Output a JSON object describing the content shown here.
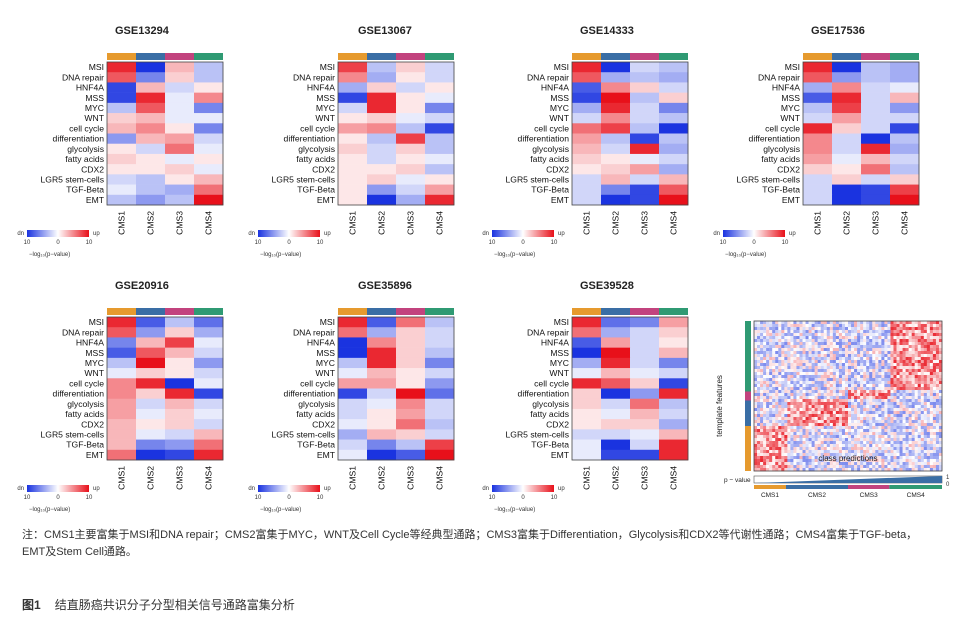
{
  "figure": {
    "row_labels": [
      "MSI",
      "DNA repair",
      "HNF4A",
      "MSS",
      "MYC",
      "WNT",
      "cell cycle",
      "differentiation",
      "glycolysis",
      "fatty acids",
      "CDX2",
      "LGR5 stem-cells",
      "TGF-Beta",
      "EMT"
    ],
    "col_labels": [
      "CMS1",
      "CMS2",
      "CMS3",
      "CMS4"
    ],
    "group_colors": [
      "#E69A2E",
      "#3A6EA5",
      "#C2437E",
      "#2F9A73"
    ],
    "legend": {
      "dn_label": "dn",
      "up_label": "up",
      "tick_left": "10",
      "tick_mid": "0",
      "tick_right": "10",
      "scale_label": "−log₁₀(p−value)"
    },
    "color_scale": {
      "low": "#1a33e0",
      "mid": "#ffffff",
      "high": "#e8101a",
      "max": 10
    },
    "panels": [
      {
        "id": "GSE13294",
        "counts": [
          "",
          "",
          "",
          ""
        ],
        "values": [
          [
            9,
            -10,
            3,
            -3
          ],
          [
            7,
            -6,
            2,
            -3
          ],
          [
            -9,
            3,
            -2,
            1
          ],
          [
            -9,
            9,
            -1,
            5
          ],
          [
            -3,
            7,
            -1,
            -6
          ],
          [
            2,
            3,
            -1,
            -1
          ],
          [
            3,
            5,
            1,
            -6
          ],
          [
            -5,
            3,
            4,
            -2
          ],
          [
            1,
            -2,
            6,
            -1
          ],
          [
            2,
            1,
            -1,
            1
          ],
          [
            1,
            1,
            2,
            -1
          ],
          [
            -2,
            -3,
            1,
            3
          ],
          [
            -1,
            -3,
            -4,
            6
          ],
          [
            -3,
            -5,
            -3,
            10
          ]
        ]
      },
      {
        "id": "GSE13067",
        "counts": [
          "",
          "",
          "",
          ""
        ],
        "values": [
          [
            8,
            -3,
            2,
            -2
          ],
          [
            5,
            -4,
            1,
            -2
          ],
          [
            -4,
            2,
            -2,
            1
          ],
          [
            -9,
            9,
            1,
            -1
          ],
          [
            -2,
            9,
            1,
            -6
          ],
          [
            1,
            2,
            -1,
            -2
          ],
          [
            4,
            5,
            -3,
            -9
          ],
          [
            1,
            -3,
            8,
            -3
          ],
          [
            2,
            -2,
            2,
            -3
          ],
          [
            1,
            -2,
            1,
            -1
          ],
          [
            1,
            1,
            2,
            -3
          ],
          [
            1,
            2,
            -1,
            1
          ],
          [
            1,
            -5,
            -2,
            4
          ],
          [
            1,
            -10,
            -4,
            9
          ]
        ]
      },
      {
        "id": "GSE14333",
        "counts": [
          "",
          "",
          "",
          ""
        ],
        "values": [
          [
            9,
            -10,
            -2,
            -3
          ],
          [
            7,
            -4,
            -3,
            -4
          ],
          [
            -8,
            5,
            2,
            -2
          ],
          [
            -9,
            10,
            -3,
            2
          ],
          [
            -4,
            9,
            -2,
            -6
          ],
          [
            -2,
            5,
            -2,
            -3
          ],
          [
            6,
            8,
            -3,
            -10
          ],
          [
            4,
            -3,
            -9,
            -3
          ],
          [
            3,
            -2,
            9,
            -4
          ],
          [
            2,
            1,
            -1,
            -2
          ],
          [
            1,
            2,
            4,
            -4
          ],
          [
            -2,
            3,
            -2,
            3
          ],
          [
            -2,
            -6,
            -9,
            7
          ],
          [
            -2,
            -10,
            -9,
            10
          ]
        ]
      },
      {
        "id": "GSE17536",
        "counts": [
          "",
          "",
          "",
          ""
        ],
        "values": [
          [
            9,
            -10,
            -3,
            -4
          ],
          [
            7,
            -5,
            -3,
            -4
          ],
          [
            -4,
            5,
            -2,
            -1
          ],
          [
            -8,
            9,
            -2,
            3
          ],
          [
            -3,
            8,
            -2,
            -5
          ],
          [
            -2,
            4,
            -2,
            -2
          ],
          [
            9,
            2,
            -2,
            -9
          ],
          [
            5,
            -2,
            -10,
            -3
          ],
          [
            5,
            -2,
            9,
            -4
          ],
          [
            4,
            -1,
            3,
            -2
          ],
          [
            2,
            1,
            6,
            -3
          ],
          [
            -2,
            2,
            -2,
            2
          ],
          [
            -2,
            -10,
            -9,
            8
          ],
          [
            -2,
            -10,
            -9,
            10
          ]
        ]
      },
      {
        "id": "GSE20916",
        "counts": [
          "",
          "",
          "",
          ""
        ],
        "values": [
          [
            9,
            -8,
            -3,
            -7
          ],
          [
            7,
            -5,
            2,
            -4
          ],
          [
            -6,
            3,
            8,
            -1
          ],
          [
            -8,
            7,
            3,
            -2
          ],
          [
            -3,
            10,
            1,
            -5
          ],
          [
            -1,
            2,
            1,
            -2
          ],
          [
            5,
            9,
            -10,
            -1
          ],
          [
            5,
            2,
            9,
            -9
          ],
          [
            4,
            -2,
            3,
            -2
          ],
          [
            4,
            -1,
            2,
            -1
          ],
          [
            3,
            1,
            2,
            -2
          ],
          [
            3,
            -1,
            -2,
            3
          ],
          [
            3,
            -6,
            -5,
            6
          ],
          [
            6,
            -10,
            -9,
            9
          ]
        ]
      },
      {
        "id": "GSE35896",
        "counts": [
          "",
          "",
          "",
          ""
        ],
        "values": [
          [
            9,
            -8,
            6,
            -3
          ],
          [
            6,
            -4,
            2,
            -2
          ],
          [
            -10,
            5,
            2,
            -2
          ],
          [
            -10,
            9,
            2,
            -3
          ],
          [
            -3,
            9,
            2,
            -6
          ],
          [
            -1,
            3,
            1,
            -2
          ],
          [
            4,
            4,
            1,
            -5
          ],
          [
            -9,
            -2,
            10,
            -7
          ],
          [
            -2,
            -1,
            5,
            -2
          ],
          [
            -2,
            1,
            4,
            -2
          ],
          [
            -1,
            1,
            6,
            -3
          ],
          [
            -4,
            3,
            2,
            -2
          ],
          [
            -2,
            -6,
            -3,
            8
          ],
          [
            -1,
            -10,
            -8,
            10
          ]
        ]
      },
      {
        "id": "GSE39528",
        "counts": [
          "",
          "",
          "",
          ""
        ],
        "values": [
          [
            9,
            -7,
            -6,
            4
          ],
          [
            6,
            -4,
            -2,
            2
          ],
          [
            -8,
            4,
            -2,
            1
          ],
          [
            -10,
            10,
            -2,
            3
          ],
          [
            -4,
            9,
            -2,
            -6
          ],
          [
            -1,
            3,
            -1,
            -2
          ],
          [
            9,
            7,
            2,
            -9
          ],
          [
            2,
            -10,
            -5,
            9
          ],
          [
            2,
            -2,
            6,
            -3
          ],
          [
            1,
            -1,
            3,
            -2
          ],
          [
            1,
            2,
            2,
            -4
          ],
          [
            -2,
            -2,
            -1,
            3
          ],
          [
            -1,
            -10,
            -2,
            9
          ],
          [
            -1,
            -9,
            -9,
            9
          ]
        ]
      }
    ],
    "template_panel": {
      "ylabel": "template features",
      "xlabel": "class predictions",
      "pvalue_label": "p − value",
      "class_labels": [
        "CMS1",
        "CMS2",
        "CMS3",
        "CMS4"
      ],
      "pvalue_ticks": [
        "1",
        "0"
      ]
    }
  },
  "note": "注：CMS1主要富集于MSI和DNA repair；CMS2富集于MYC，WNT及Cell Cycle等经典型通路；CMS3富集于Differentiation，Glycolysis和CDX2等代谢性通路；CMS4富集于TGF-beta，EMT及Stem Cell通路。",
  "caption": {
    "label": "图1",
    "text": "结直肠癌共识分子分型相关信号通路富集分析"
  }
}
